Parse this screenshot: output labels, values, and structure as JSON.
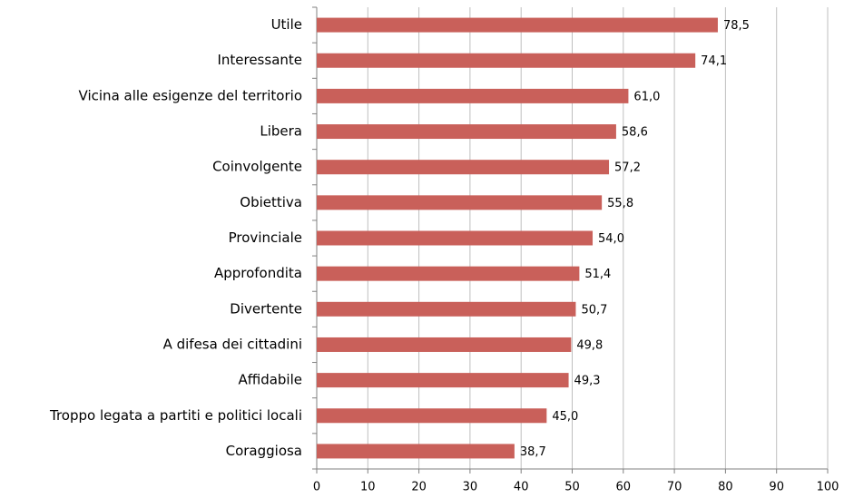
{
  "chart_data": {
    "type": "barh",
    "categories": [
      "Utile",
      "Interessante",
      "Vicina alle esigenze del territorio",
      "Libera",
      "Coinvolgente",
      "Obiettiva",
      "Provinciale",
      "Approfondita",
      "Divertente",
      "A difesa dei cittadini",
      "Affidabile",
      "Troppo legata a partiti e politici locali",
      "Coraggiosa"
    ],
    "values": [
      78.5,
      74.1,
      61.0,
      58.6,
      57.2,
      55.8,
      54.0,
      51.4,
      50.7,
      49.8,
      49.3,
      45.0,
      38.7
    ],
    "value_labels": [
      "78,5",
      "74,1",
      "61,0",
      "58,6",
      "57,2",
      "55,8",
      "54,0",
      "51,4",
      "50,7",
      "49,8",
      "49,3",
      "45,0",
      "38,7"
    ],
    "color": "#c9605a",
    "xlim": [
      0,
      100
    ],
    "xticks": [
      0,
      10,
      20,
      30,
      40,
      50,
      60,
      70,
      80,
      90,
      100
    ],
    "grid": true
  }
}
